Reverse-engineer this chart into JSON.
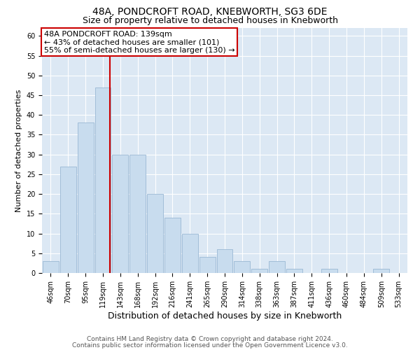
{
  "title": "48A, PONDCROFT ROAD, KNEBWORTH, SG3 6DE",
  "subtitle": "Size of property relative to detached houses in Knebworth",
  "xlabel": "Distribution of detached houses by size in Knebworth",
  "ylabel": "Number of detached properties",
  "bar_labels": [
    "46sqm",
    "70sqm",
    "95sqm",
    "119sqm",
    "143sqm",
    "168sqm",
    "192sqm",
    "216sqm",
    "241sqm",
    "265sqm",
    "290sqm",
    "314sqm",
    "338sqm",
    "363sqm",
    "387sqm",
    "411sqm",
    "436sqm",
    "460sqm",
    "484sqm",
    "509sqm",
    "533sqm"
  ],
  "bar_values": [
    3,
    27,
    38,
    47,
    30,
    30,
    20,
    14,
    10,
    4,
    6,
    3,
    1,
    3,
    1,
    0,
    1,
    0,
    0,
    1,
    0
  ],
  "bar_color": "#c8dcee",
  "bar_edge_color": "#9ab8d4",
  "grid_color": "#c8d8e8",
  "plot_bg_color": "#dce8f4",
  "ylim": [
    0,
    62
  ],
  "yticks": [
    0,
    5,
    10,
    15,
    20,
    25,
    30,
    35,
    40,
    45,
    50,
    55,
    60
  ],
  "property_label": "48A PONDCROFT ROAD: 139sqm",
  "annotation_line1": "← 43% of detached houses are smaller (101)",
  "annotation_line2": "55% of semi-detached houses are larger (130) →",
  "vline_color": "#cc0000",
  "annotation_box_color": "#ffffff",
  "annotation_box_edge": "#cc0000",
  "footer_line1": "Contains HM Land Registry data © Crown copyright and database right 2024.",
  "footer_line2": "Contains public sector information licensed under the Open Government Licence v3.0.",
  "title_fontsize": 10,
  "subtitle_fontsize": 9,
  "xlabel_fontsize": 9,
  "ylabel_fontsize": 8,
  "tick_fontsize": 7,
  "annotation_fontsize": 8,
  "footer_fontsize": 6.5
}
